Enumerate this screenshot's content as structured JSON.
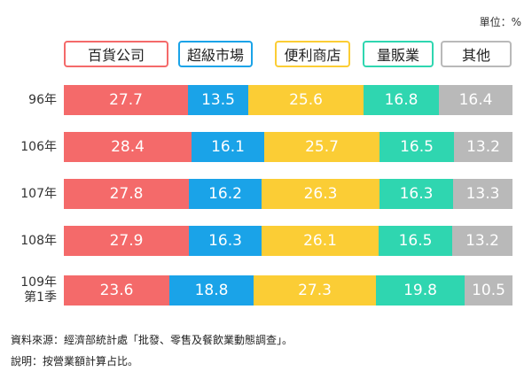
{
  "unit_label": "單位：%",
  "notes": {
    "source": "資料來源：經濟部統計處「批發、零售及餐飲業動態調查」。",
    "explanation": "說明：按營業額計算占比。"
  },
  "colors": {
    "dept_store": "#f46a6a",
    "supermarket": "#1aa3e8",
    "convenience": "#fbcd35",
    "hypermarket": "#2fd6b0",
    "other": "#b9b9b9"
  },
  "chart_data": {
    "type": "bar",
    "stacked": true,
    "orientation": "horizontal",
    "percent_stacked": true,
    "legend_position": "top",
    "categories": [
      [
        "96年"
      ],
      [
        "106年"
      ],
      [
        "107年"
      ],
      [
        "108年"
      ],
      [
        "109年",
        "第1季"
      ]
    ],
    "series": [
      {
        "name": "百貨公司",
        "color_key": "dept_store",
        "values": [
          27.7,
          28.4,
          27.8,
          27.9,
          23.6
        ]
      },
      {
        "name": "超級市場",
        "color_key": "supermarket",
        "values": [
          13.5,
          16.1,
          16.2,
          16.3,
          18.8
        ]
      },
      {
        "name": "便利商店",
        "color_key": "convenience",
        "values": [
          25.6,
          25.7,
          26.3,
          26.1,
          27.3
        ]
      },
      {
        "name": "量販業",
        "color_key": "hypermarket",
        "values": [
          16.8,
          16.5,
          16.3,
          16.5,
          19.8
        ]
      },
      {
        "name": "其他",
        "color_key": "other",
        "values": [
          16.4,
          13.2,
          13.3,
          13.2,
          10.5
        ]
      }
    ],
    "data_labels": true,
    "grid": false
  }
}
